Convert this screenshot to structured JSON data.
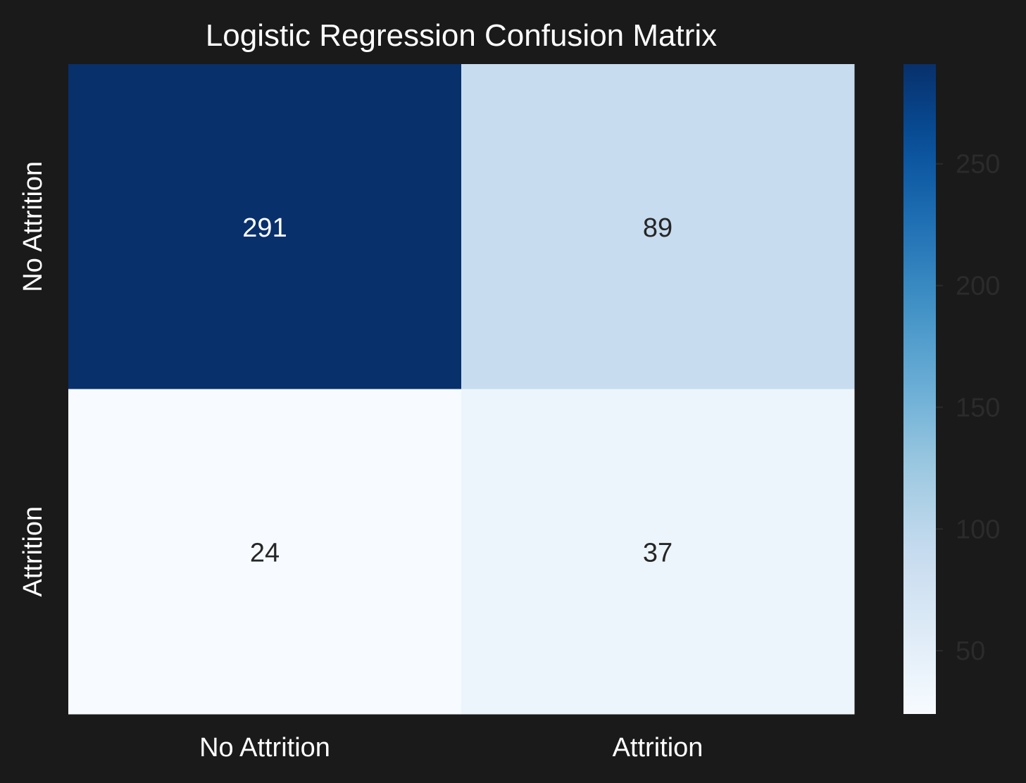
{
  "chart_data": {
    "type": "heatmap",
    "title": "Logistic Regression Confusion Matrix",
    "xlabel": "",
    "ylabel": "",
    "x_categories": [
      "No Attrition",
      "Attrition"
    ],
    "y_categories": [
      "No Attrition",
      "Attrition"
    ],
    "values": [
      [
        291,
        89
      ],
      [
        24,
        37
      ]
    ],
    "colormap": "Blues",
    "vmin": 24,
    "vmax": 291,
    "colorbar_ticks": [
      50,
      100,
      150,
      200,
      250
    ],
    "grid": false,
    "legend": "colorbar-right"
  },
  "colors": {
    "background": "#1a1a1a",
    "title_text": "#ffffff",
    "tick_label_text": "#ffffff",
    "colorbar_tick_text": "#2b2b2b",
    "annotation_light": "#ffffff",
    "annotation_dark": "#262626"
  }
}
